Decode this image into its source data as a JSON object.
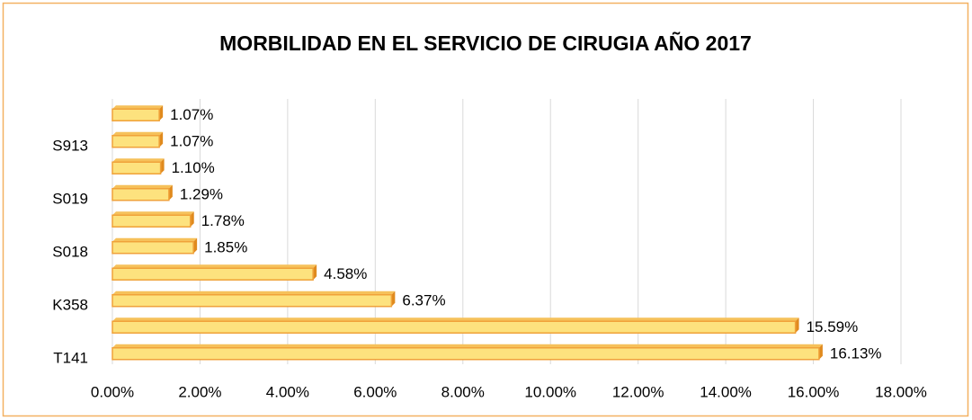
{
  "chart_data": {
    "type": "bar",
    "orientation": "horizontal",
    "title": "MORBILIDAD EN EL SERVICIO DE CIRUGIA AÑO 2017",
    "categories": [
      null,
      "S913",
      null,
      "S019",
      null,
      "S018",
      null,
      "K358",
      null,
      "T141"
    ],
    "values": [
      1.07,
      1.07,
      1.1,
      1.29,
      1.78,
      1.85,
      4.58,
      6.37,
      15.59,
      16.13
    ],
    "value_labels": [
      "1.07%",
      "1.07%",
      "1.10%",
      "1.29%",
      "1.78%",
      "1.85%",
      "4.58%",
      "6.37%",
      "15.59%",
      "16.13%"
    ],
    "color": "#fde27e",
    "xlim": [
      0,
      18
    ],
    "xticks": [
      {
        "value": 0,
        "label": "0.00%"
      },
      {
        "value": 2,
        "label": "2.00%"
      },
      {
        "value": 4,
        "label": "4.00%"
      },
      {
        "value": 6,
        "label": "6.00%"
      },
      {
        "value": 8,
        "label": "8.00%"
      },
      {
        "value": 10,
        "label": "10.00%"
      },
      {
        "value": 12,
        "label": "12.00%"
      },
      {
        "value": 14,
        "label": "14.00%"
      },
      {
        "value": 16,
        "label": "16.00%"
      },
      {
        "value": 18,
        "label": "18.00%"
      }
    ],
    "grid": true
  }
}
